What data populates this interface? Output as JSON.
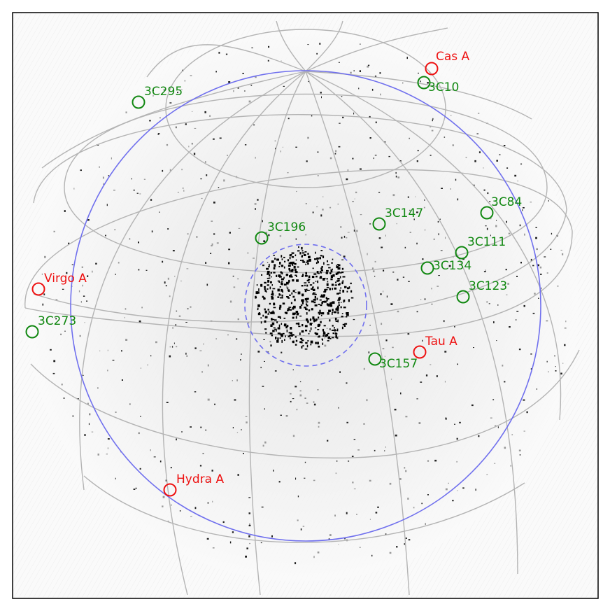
{
  "colors": {
    "bright": "#ee1111",
    "calibrator": "#118811",
    "grid": "#b4b4b4",
    "horizon": "#7070ee",
    "frame": "#000000"
  },
  "chart_data": {
    "type": "scatter",
    "title": "",
    "grid": true,
    "legend": "none",
    "series": [
      {
        "points": [
          {
            "label": "Cas A",
            "color": "bright"
          },
          {
            "label": "Virgo A",
            "color": "bright"
          },
          {
            "label": "Tau A",
            "color": "bright"
          },
          {
            "label": "Hydra A",
            "color": "bright"
          },
          {
            "label": "3C295",
            "color": "calibrator"
          },
          {
            "label": "3C10",
            "color": "calibrator"
          },
          {
            "label": "3C84",
            "color": "calibrator"
          },
          {
            "label": "3C147",
            "color": "calibrator"
          },
          {
            "label": "3C196",
            "color": "calibrator"
          },
          {
            "label": "3C111",
            "color": "calibrator"
          },
          {
            "label": "3C134",
            "color": "calibrator"
          },
          {
            "label": "3C123",
            "color": "calibrator"
          },
          {
            "label": "3C273",
            "color": "calibrator"
          },
          {
            "label": "3C157",
            "color": "calibrator"
          }
        ]
      }
    ]
  }
}
